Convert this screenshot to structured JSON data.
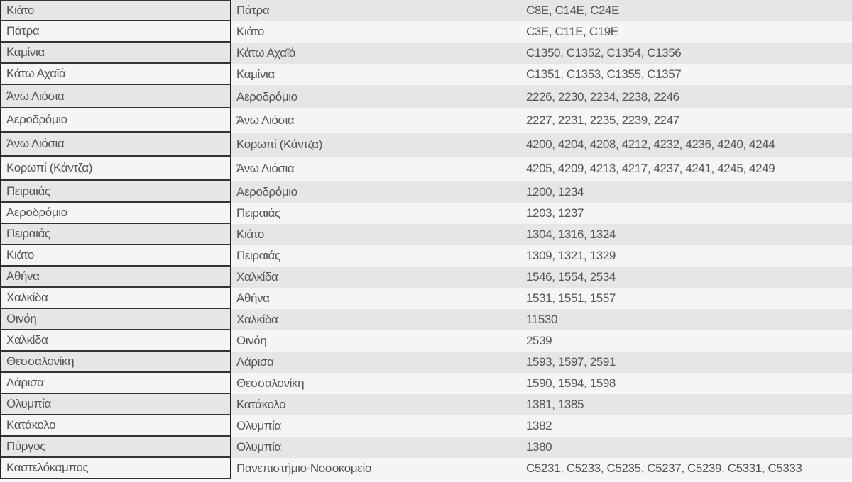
{
  "rows": [
    [
      "Κιάτο",
      "Πάτρα",
      "C8E, C14E, C24E"
    ],
    [
      "Πάτρα",
      "Κιάτο",
      "C3E, C11E, C19E"
    ],
    [
      "Καμίνια",
      "Κάτω Αχαϊά",
      "C1350, C1352, C1354, C1356"
    ],
    [
      "Κάτω Αχαϊά",
      "Καμίνια",
      "C1351, C1353, C1355, C1357"
    ],
    [
      "Άνω Λιόσια",
      "Αεροδρόμιο",
      "2226, 2230, 2234, 2238, 2246"
    ],
    [
      "Αεροδρόμιο",
      "Άνω Λιόσια",
      "2227, 2231, 2235, 2239, 2247"
    ],
    [
      "Άνω Λιόσια",
      "Κορωπί (Κάντζα)",
      "4200, 4204, 4208, 4212, 4232, 4236, 4240, 4244"
    ],
    [
      "Κορωπί (Κάντζα)",
      "Άνω Λιόσια",
      "4205, 4209, 4213, 4217, 4237, 4241, 4245, 4249"
    ],
    [
      "Πειραιάς",
      "Αεροδρόμιο",
      "1200, 1234"
    ],
    [
      "Αεροδρόμιο",
      "Πειραιάς",
      "1203, 1237"
    ],
    [
      "Πειραιάς",
      "Κιάτο",
      "1304, 1316, 1324"
    ],
    [
      "Κιάτο",
      "Πειραιάς",
      "1309, 1321, 1329"
    ],
    [
      "Αθήνα",
      "Χαλκίδα",
      "1546, 1554, 2534"
    ],
    [
      "Χαλκίδα",
      "Αθήνα",
      "1531, 1551, 1557"
    ],
    [
      "Οινόη",
      "Χαλκίδα",
      "11530"
    ],
    [
      "Χαλκίδα",
      "Οινόη",
      "2539"
    ],
    [
      "Θεσσαλονίκη",
      "Λάρισα",
      "1593, 1597, 2591"
    ],
    [
      "Λάρισα",
      "Θεσσαλονίκη",
      "1590, 1594, 1598"
    ],
    [
      "Ολυμπία",
      "Κατάκολο",
      "1381, 1385"
    ],
    [
      "Κατάκολο",
      "Ολυμπία",
      "1382"
    ],
    [
      "Πύργος",
      "Ολυμπία",
      "1380"
    ],
    [
      "Καστελόκαμπος",
      "Πανεπιστήμιο-Νοσοκομείο",
      "C5231, C5233, C5235, C5237, C5239, C5331, C5333"
    ]
  ]
}
